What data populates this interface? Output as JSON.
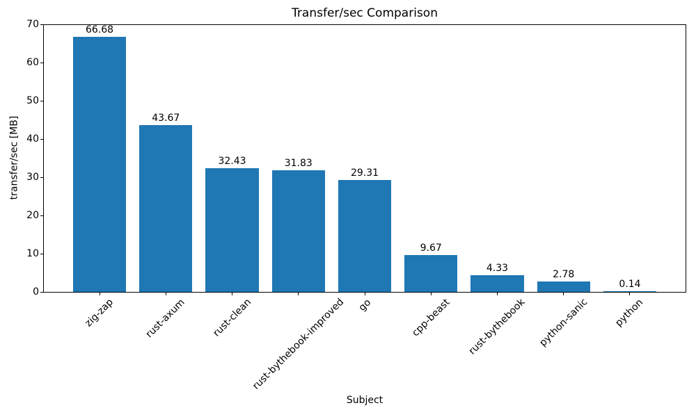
{
  "chart_data": {
    "type": "bar",
    "title": "Transfer/sec Comparison",
    "xlabel": "Subject",
    "ylabel": "transfer/sec [MB]",
    "categories": [
      "zig-zap",
      "rust-axum",
      "rust-clean",
      "rust-bythebook-improved",
      "go",
      "cpp-beast",
      "rust-bythebook",
      "python-sanic",
      "python"
    ],
    "values": [
      66.68,
      43.67,
      32.43,
      31.83,
      29.31,
      9.67,
      4.33,
      2.78,
      0.14
    ],
    "bar_labels": [
      "66.68",
      "43.67",
      "32.43",
      "31.83",
      "29.31",
      "9.67",
      "4.33",
      "2.78",
      "0.14"
    ],
    "ylim": [
      0,
      70
    ],
    "yticks": [
      0,
      10,
      20,
      30,
      40,
      50,
      60,
      70
    ],
    "bar_color": "#1f77b4",
    "axis_color": "#000000",
    "grid": false,
    "legend": "none",
    "x_tick_rotation_deg": 45
  }
}
